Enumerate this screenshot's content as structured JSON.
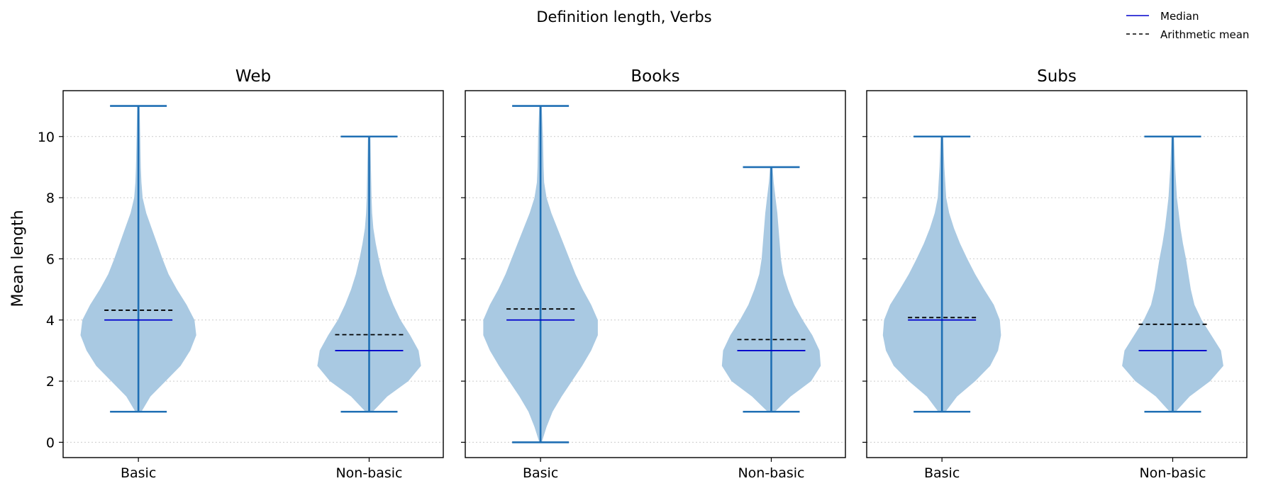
{
  "chart_data": {
    "type": "violin",
    "title": "Definition length, Verbs",
    "ylabel": "Mean length",
    "ylim": [
      -0.5,
      11.5
    ],
    "yticks": [
      0,
      2,
      4,
      6,
      8,
      10
    ],
    "categories": [
      "Basic",
      "Non-basic"
    ],
    "grid": "horizontal dotted",
    "legend": {
      "position": "top-right",
      "entries": [
        {
          "label": "Median",
          "style": "solid",
          "color": "#0000cc"
        },
        {
          "label": "Arithmetic mean",
          "style": "dashed",
          "color": "#000000"
        }
      ]
    },
    "colors": {
      "body": "#a9c9e2",
      "whisker": "#1f6fb4",
      "median": "#0000cc",
      "mean": "#000000"
    },
    "panels": [
      {
        "title": "Web",
        "violins": [
          {
            "category": "Basic",
            "min": 1,
            "max": 11,
            "median": 4.0,
            "mean": 4.32,
            "profile": [
              [
                1,
                0.05
              ],
              [
                1.5,
                0.2
              ],
              [
                2,
                0.45
              ],
              [
                2.5,
                0.7
              ],
              [
                3,
                0.86
              ],
              [
                3.5,
                0.96
              ],
              [
                4,
                0.93
              ],
              [
                4.5,
                0.8
              ],
              [
                5,
                0.64
              ],
              [
                5.5,
                0.5
              ],
              [
                6,
                0.4
              ],
              [
                6.5,
                0.31
              ],
              [
                7,
                0.22
              ],
              [
                7.5,
                0.13
              ],
              [
                8,
                0.07
              ],
              [
                8.5,
                0.05
              ],
              [
                9,
                0.04
              ],
              [
                10,
                0.03
              ],
              [
                11,
                0.02
              ]
            ]
          },
          {
            "category": "Non-basic",
            "min": 1,
            "max": 10,
            "median": 3.0,
            "mean": 3.52,
            "profile": [
              [
                1,
                0.06
              ],
              [
                1.5,
                0.3
              ],
              [
                2,
                0.65
              ],
              [
                2.5,
                0.86
              ],
              [
                3,
                0.82
              ],
              [
                3.5,
                0.68
              ],
              [
                4,
                0.52
              ],
              [
                4.5,
                0.4
              ],
              [
                5,
                0.3
              ],
              [
                5.5,
                0.22
              ],
              [
                6,
                0.16
              ],
              [
                6.5,
                0.11
              ],
              [
                7,
                0.07
              ],
              [
                7.5,
                0.05
              ],
              [
                8,
                0.04
              ],
              [
                9,
                0.03
              ],
              [
                10,
                0.02
              ]
            ]
          }
        ]
      },
      {
        "title": "Books",
        "violins": [
          {
            "category": "Basic",
            "min": 0,
            "max": 11,
            "median": 4.0,
            "mean": 4.36,
            "profile": [
              [
                0,
                0.02
              ],
              [
                0.5,
                0.1
              ],
              [
                1,
                0.2
              ],
              [
                1.5,
                0.35
              ],
              [
                2,
                0.52
              ],
              [
                2.5,
                0.69
              ],
              [
                3,
                0.84
              ],
              [
                3.5,
                0.95
              ],
              [
                4,
                0.95
              ],
              [
                4.5,
                0.84
              ],
              [
                5,
                0.7
              ],
              [
                5.5,
                0.58
              ],
              [
                6,
                0.48
              ],
              [
                6.5,
                0.38
              ],
              [
                7,
                0.28
              ],
              [
                7.5,
                0.18
              ],
              [
                8,
                0.1
              ],
              [
                8.5,
                0.06
              ],
              [
                9,
                0.05
              ],
              [
                10,
                0.04
              ],
              [
                11,
                0.02
              ]
            ]
          },
          {
            "category": "Non-basic",
            "min": 1,
            "max": 9,
            "median": 3.0,
            "mean": 3.36,
            "profile": [
              [
                1,
                0.06
              ],
              [
                1.5,
                0.32
              ],
              [
                2,
                0.66
              ],
              [
                2.5,
                0.82
              ],
              [
                3,
                0.8
              ],
              [
                3.5,
                0.68
              ],
              [
                4,
                0.52
              ],
              [
                4.5,
                0.38
              ],
              [
                5,
                0.28
              ],
              [
                5.5,
                0.2
              ],
              [
                6,
                0.16
              ],
              [
                6.5,
                0.14
              ],
              [
                7,
                0.12
              ],
              [
                7.5,
                0.1
              ],
              [
                8,
                0.07
              ],
              [
                8.5,
                0.04
              ],
              [
                9,
                0.02
              ]
            ]
          }
        ]
      },
      {
        "title": "Subs",
        "violins": [
          {
            "category": "Basic",
            "min": 1,
            "max": 10,
            "median": 4.0,
            "mean": 4.08,
            "profile": [
              [
                1,
                0.06
              ],
              [
                1.5,
                0.25
              ],
              [
                2,
                0.55
              ],
              [
                2.5,
                0.8
              ],
              [
                3,
                0.93
              ],
              [
                3.5,
                0.98
              ],
              [
                4,
                0.96
              ],
              [
                4.5,
                0.86
              ],
              [
                5,
                0.7
              ],
              [
                5.5,
                0.55
              ],
              [
                6,
                0.42
              ],
              [
                6.5,
                0.3
              ],
              [
                7,
                0.2
              ],
              [
                7.5,
                0.12
              ],
              [
                8,
                0.07
              ],
              [
                9,
                0.04
              ],
              [
                10,
                0.02
              ]
            ]
          },
          {
            "category": "Non-basic",
            "min": 1,
            "max": 10,
            "median": 3.0,
            "mean": 3.86,
            "profile": [
              [
                1,
                0.05
              ],
              [
                1.5,
                0.28
              ],
              [
                2,
                0.62
              ],
              [
                2.5,
                0.84
              ],
              [
                3,
                0.8
              ],
              [
                3.5,
                0.64
              ],
              [
                4,
                0.48
              ],
              [
                4.5,
                0.36
              ],
              [
                5,
                0.3
              ],
              [
                5.5,
                0.26
              ],
              [
                6,
                0.22
              ],
              [
                6.5,
                0.17
              ],
              [
                7,
                0.13
              ],
              [
                7.5,
                0.1
              ],
              [
                8,
                0.07
              ],
              [
                9,
                0.04
              ],
              [
                10,
                0.02
              ]
            ]
          }
        ]
      }
    ]
  }
}
